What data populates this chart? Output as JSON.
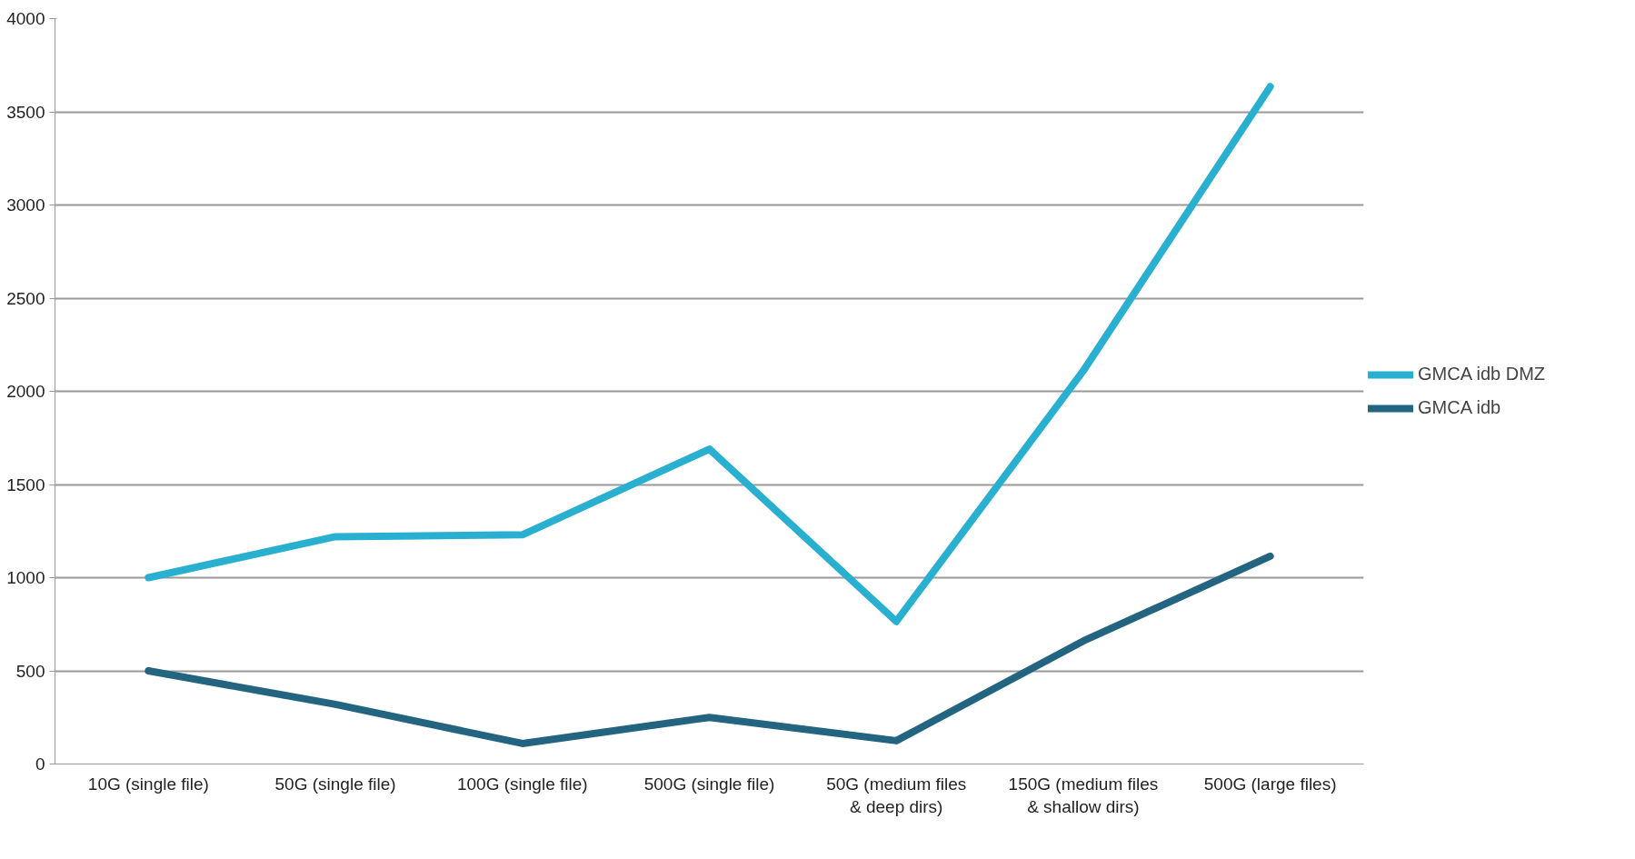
{
  "chart_data": {
    "type": "line",
    "categories": [
      "10G (single file)",
      "50G (single file)",
      "100G (single file)",
      "500G (single file)",
      "50G (medium files\n& deep dirs)",
      "150G (medium files\n& shallow dirs)",
      "500G (large files)"
    ],
    "series": [
      {
        "name": "GMCA idb DMZ",
        "color": "#29b0d0",
        "values": [
          1000,
          1220,
          1230,
          1690,
          765,
          2110,
          3635
        ]
      },
      {
        "name": "GMCA idb",
        "color": "#236580",
        "values": [
          500,
          320,
          110,
          250,
          125,
          660,
          1115
        ]
      }
    ],
    "ylim": [
      0,
      4000
    ],
    "yticks": [
      0,
      500,
      1000,
      1500,
      2000,
      2500,
      3000,
      3500,
      4000
    ],
    "grid": "y",
    "legend": "right",
    "marker": "none",
    "line_style": "solid"
  }
}
